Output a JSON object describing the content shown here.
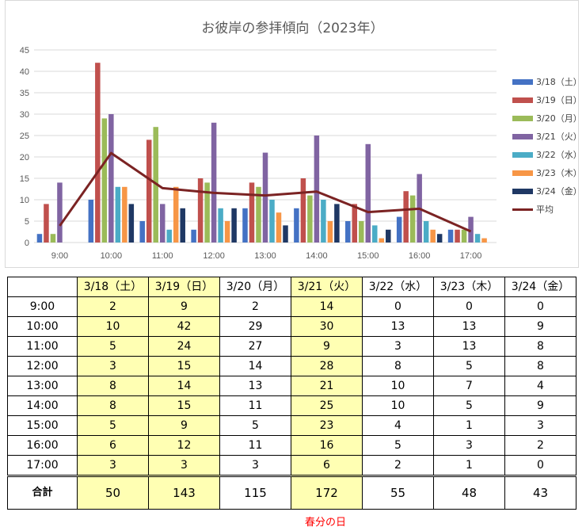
{
  "chart_data": {
    "type": "bar",
    "title": "お彼岸の参拝傾向（2023年）",
    "categories": [
      "9:00",
      "10:00",
      "11:00",
      "12:00",
      "13:00",
      "14:00",
      "15:00",
      "16:00",
      "17:00"
    ],
    "ylim": [
      0,
      45
    ],
    "yticks": [
      0,
      5,
      10,
      15,
      20,
      25,
      30,
      35,
      40,
      45
    ],
    "grid": true,
    "legend_position": "right",
    "series": [
      {
        "name": "3/18（土）",
        "color": "#4472c4",
        "values": [
          2,
          10,
          5,
          3,
          8,
          8,
          5,
          6,
          3
        ]
      },
      {
        "name": "3/19（日）",
        "color": "#c0504d",
        "values": [
          9,
          42,
          24,
          15,
          14,
          15,
          9,
          12,
          3
        ]
      },
      {
        "name": "3/20（月）",
        "color": "#9bbb59",
        "values": [
          2,
          29,
          27,
          14,
          13,
          11,
          5,
          11,
          3
        ]
      },
      {
        "name": "3/21（火）",
        "color": "#8064a2",
        "values": [
          14,
          30,
          9,
          28,
          21,
          25,
          23,
          16,
          6
        ]
      },
      {
        "name": "3/22（水）",
        "color": "#4bacc6",
        "values": [
          0,
          13,
          3,
          8,
          10,
          10,
          4,
          5,
          2
        ]
      },
      {
        "name": "3/23（木）",
        "color": "#f79646",
        "values": [
          0,
          13,
          13,
          5,
          7,
          5,
          1,
          3,
          1
        ]
      },
      {
        "name": "3/24（金）",
        "color": "#1f3864",
        "values": [
          0,
          9,
          8,
          8,
          4,
          9,
          3,
          2,
          0
        ]
      }
    ],
    "line_series": {
      "name": "平均",
      "color": "#7b2323",
      "values": [
        3.9,
        20.9,
        12.7,
        11.6,
        11.0,
        11.9,
        7.1,
        7.9,
        2.6
      ]
    }
  },
  "table": {
    "headers": [
      "",
      "3/18（土）",
      "3/19（日）",
      "3/20（月）",
      "3/21（火）",
      "3/22（水）",
      "3/23（木）",
      "3/24（金）"
    ],
    "highlight_columns": [
      1,
      2,
      4
    ],
    "rows": [
      [
        "9:00",
        "2",
        "9",
        "2",
        "14",
        "0",
        "0",
        "0"
      ],
      [
        "10:00",
        "10",
        "42",
        "29",
        "30",
        "13",
        "13",
        "9"
      ],
      [
        "11:00",
        "5",
        "24",
        "27",
        "9",
        "3",
        "13",
        "8"
      ],
      [
        "12:00",
        "3",
        "15",
        "14",
        "28",
        "8",
        "5",
        "8"
      ],
      [
        "13:00",
        "8",
        "14",
        "13",
        "21",
        "10",
        "7",
        "4"
      ],
      [
        "14:00",
        "8",
        "15",
        "11",
        "25",
        "10",
        "5",
        "9"
      ],
      [
        "15:00",
        "5",
        "9",
        "5",
        "23",
        "4",
        "1",
        "3"
      ],
      [
        "16:00",
        "6",
        "12",
        "11",
        "16",
        "5",
        "3",
        "2"
      ],
      [
        "17:00",
        "3",
        "3",
        "3",
        "6",
        "2",
        "1",
        "0"
      ]
    ],
    "total_row": [
      "合計",
      "50",
      "143",
      "115",
      "172",
      "55",
      "48",
      "43"
    ]
  },
  "footnote": "春分の日"
}
